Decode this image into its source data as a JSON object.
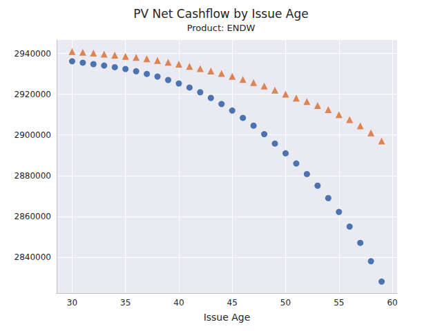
{
  "chart_data": {
    "type": "scatter",
    "title": "PV Net Cashflow by Issue Age",
    "subtitle": "Product: ENDW",
    "x_label": "Issue Age",
    "x": [
      30,
      31,
      32,
      33,
      34,
      35,
      36,
      37,
      38,
      39,
      40,
      41,
      42,
      43,
      44,
      45,
      46,
      47,
      48,
      49,
      50,
      51,
      52,
      53,
      54,
      55,
      56,
      57,
      58,
      59
    ],
    "series": [
      {
        "color": "#4c72b0",
        "marker": "circle",
        "values": [
          2936200,
          2935500,
          2934800,
          2934100,
          2933300,
          2932400,
          2931300,
          2930000,
          2928700,
          2927000,
          2925300,
          2923300,
          2921000,
          2918200,
          2915200,
          2912000,
          2908400,
          2904600,
          2900400,
          2895800,
          2891000,
          2886000,
          2880800,
          2875100,
          2869000,
          2862200,
          2855000,
          2847000,
          2838000,
          2828000
        ]
      },
      {
        "color": "#dd8452",
        "marker": "triangle",
        "values": [
          2941000,
          2940600,
          2940200,
          2939700,
          2939200,
          2938600,
          2938100,
          2937400,
          2936600,
          2935700,
          2934800,
          2933700,
          2932600,
          2931400,
          2930200,
          2928800,
          2927300,
          2925700,
          2924000,
          2922000,
          2920100,
          2918100,
          2916400,
          2914500,
          2912400,
          2910000,
          2907500,
          2904500,
          2901000,
          2897000
        ]
      }
    ],
    "xlim": [
      28.55,
      60.45
    ],
    "xticks": [
      30,
      35,
      40,
      45,
      50,
      55,
      60
    ],
    "ylim": [
      2822350,
      2946650
    ],
    "yticks": [
      2840000,
      2860000,
      2880000,
      2900000,
      2920000,
      2940000
    ],
    "grid": true
  }
}
